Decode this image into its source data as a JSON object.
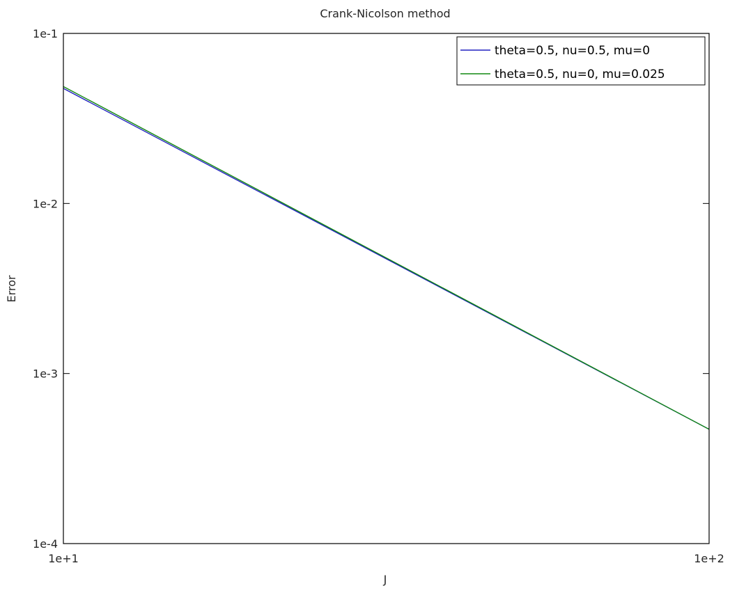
{
  "chart_data": {
    "type": "line",
    "title": "Crank-Nicolson method",
    "xlabel": "J",
    "ylabel": "Error",
    "xscale": "log",
    "yscale": "log",
    "xlim": [
      10,
      100
    ],
    "ylim": [
      0.0001,
      0.1
    ],
    "xticks": [
      {
        "value": 10,
        "label": "1e+1"
      },
      {
        "value": 100,
        "label": "1e+2"
      }
    ],
    "yticks": [
      {
        "value": 0.1,
        "label": "1e-1"
      },
      {
        "value": 0.01,
        "label": "1e-2"
      },
      {
        "value": 0.001,
        "label": "1e-3"
      },
      {
        "value": 0.0001,
        "label": "1e-4"
      }
    ],
    "grid": false,
    "legend_position": "top-right",
    "series": [
      {
        "name": "theta=0.5, nu=0.5, mu=0",
        "color": "#2020c0",
        "x": [
          10,
          100
        ],
        "y": [
          0.0475,
          0.00047
        ]
      },
      {
        "name": "theta=0.5, nu=0, mu=0.025",
        "color": "#118811",
        "x": [
          10,
          100
        ],
        "y": [
          0.0487,
          0.00047
        ]
      }
    ]
  }
}
